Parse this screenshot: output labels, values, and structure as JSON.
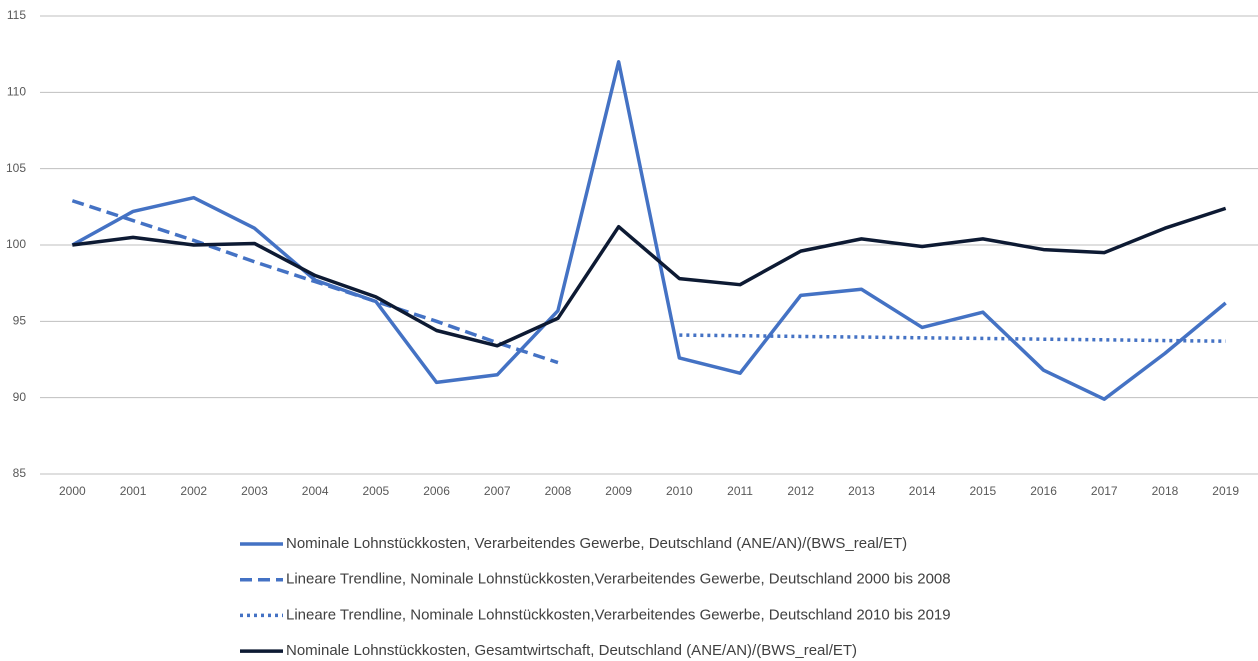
{
  "chart_data": {
    "type": "line",
    "categories": [
      "2000",
      "2001",
      "2002",
      "2003",
      "2004",
      "2005",
      "2006",
      "2007",
      "2008",
      "2009",
      "2010",
      "2011",
      "2012",
      "2013",
      "2014",
      "2015",
      "2016",
      "2017",
      "2018",
      "2019"
    ],
    "series": [
      {
        "name": "Nominale Lohnstückkosten, Verarbeitendes Gewerbe, Deutschland (ANE/AN)/(BWS_real/ET)",
        "color": "#4472c4",
        "dash": "solid",
        "values": [
          100,
          102.2,
          103.1,
          101.1,
          97.7,
          96.3,
          91.0,
          91.5,
          95.7,
          112.0,
          92.6,
          91.6,
          96.7,
          97.1,
          94.6,
          95.6,
          91.8,
          89.9,
          92.9,
          96.2
        ]
      },
      {
        "name": "Lineare Trendline, Nominale Lohnstückkosten,Verarbeitendes Gewerbe, Deutschland 2000 bis 2008",
        "color": "#4472c4",
        "dash": "dashed",
        "values": [
          102.9,
          101.6,
          100.3,
          98.9,
          97.6,
          96.3,
          95.0,
          93.6,
          92.3,
          null,
          null,
          null,
          null,
          null,
          null,
          null,
          null,
          null,
          null,
          null
        ]
      },
      {
        "name": "Lineare Trendline, Nominale Lohnstückkosten,Verarbeitendes Gewerbe, Deutschland 2010 bis 2019",
        "color": "#4472c4",
        "dash": "dotted",
        "values": [
          null,
          null,
          null,
          null,
          null,
          null,
          null,
          null,
          null,
          null,
          94.1,
          94.06,
          94.01,
          93.97,
          93.92,
          93.88,
          93.83,
          93.79,
          93.74,
          93.7
        ]
      },
      {
        "name": "Nominale Lohnstückkosten, Gesamtwirtschaft, Deutschland (ANE/AN)/(BWS_real/ET)",
        "color": "#0d1a33",
        "dash": "solid",
        "values": [
          100,
          100.5,
          100.0,
          100.1,
          98.0,
          96.6,
          94.4,
          93.4,
          95.2,
          101.2,
          97.8,
          97.4,
          99.6,
          100.4,
          99.9,
          100.4,
          99.7,
          99.5,
          101.1,
          102.4
        ]
      }
    ],
    "ylim": [
      85,
      115
    ],
    "yticks": [
      85,
      90,
      95,
      100,
      105,
      110,
      115
    ],
    "grid": true,
    "legend": "bottom"
  }
}
